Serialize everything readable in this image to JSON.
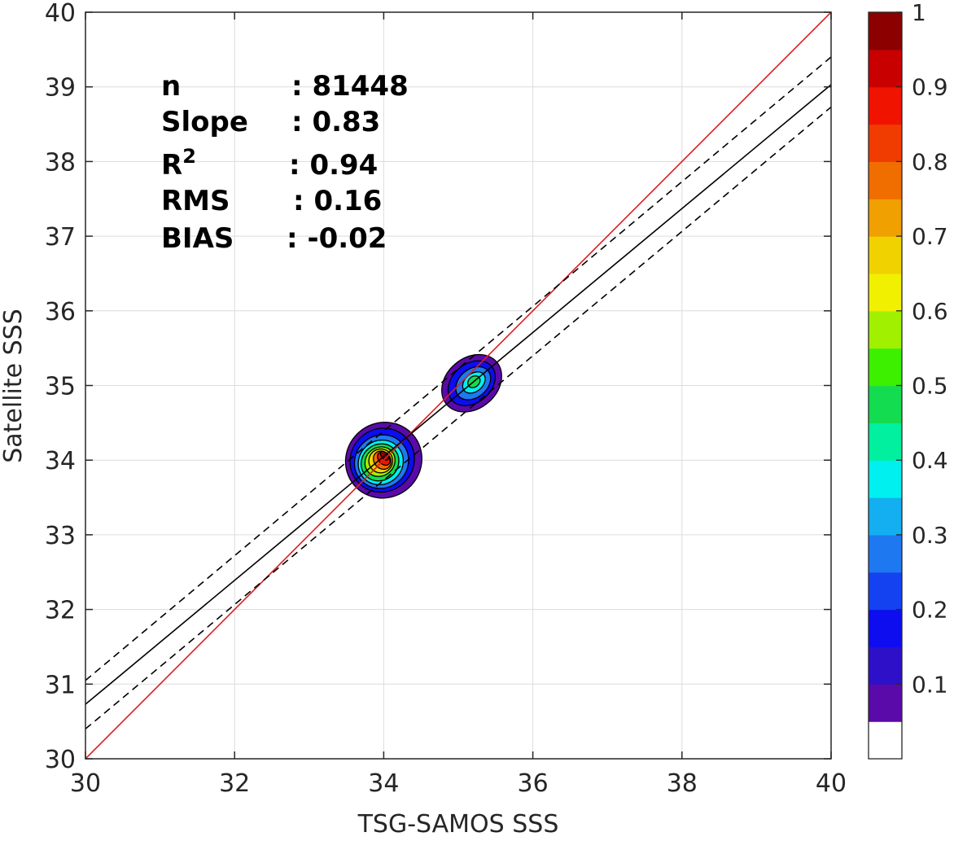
{
  "chart_data": {
    "type": "heatmap",
    "subtype": "density contour scatter",
    "xlabel": "TSG-SAMOS SSS",
    "ylabel": "Satellite SSS",
    "xlim": [
      30,
      40
    ],
    "ylim": [
      30,
      40
    ],
    "x_ticks": [
      "30",
      "32",
      "34",
      "36",
      "38",
      "40"
    ],
    "y_ticks": [
      "30",
      "31",
      "32",
      "33",
      "34",
      "35",
      "36",
      "37",
      "38",
      "39",
      "40"
    ],
    "grid": true,
    "stats": [
      {
        "label": "n",
        "sep": ":",
        "value": "81448"
      },
      {
        "label": "Slope",
        "sep": ":",
        "value": "0.83"
      },
      {
        "label": "R",
        "sup": "2",
        "sep": ":",
        "value": "0.94"
      },
      {
        "label": "RMS",
        "sep": ":",
        "value": "0.16"
      },
      {
        "label": "BIAS",
        "sep": ":",
        "value": "-0.02"
      }
    ],
    "lines": [
      {
        "role": "one-to-one",
        "color": "#e41a1c",
        "style": "solid",
        "points": [
          [
            30,
            30
          ],
          [
            40,
            40
          ]
        ]
      },
      {
        "role": "fit",
        "color": "#000000",
        "style": "solid",
        "points": [
          [
            30,
            30.73
          ],
          [
            40,
            39.03
          ]
        ]
      },
      {
        "role": "fit-upper",
        "color": "#000000",
        "style": "dashed",
        "points": [
          [
            30,
            31.05
          ],
          [
            40,
            39.4
          ]
        ]
      },
      {
        "role": "fit-lower",
        "color": "#000000",
        "style": "dashed",
        "points": [
          [
            30,
            30.4
          ],
          [
            40,
            38.73
          ]
        ]
      }
    ],
    "density_clusters": [
      {
        "center": [
          34.0,
          34.0
        ],
        "levels": [
          {
            "value": 0.05,
            "rx": 0.52,
            "ry": 0.5,
            "dx": 0.0,
            "dy": 0.0
          },
          {
            "value": 0.15,
            "rx": 0.44,
            "ry": 0.42,
            "dx": -0.02,
            "dy": 0.0
          },
          {
            "value": 0.25,
            "rx": 0.37,
            "ry": 0.35,
            "dx": -0.03,
            "dy": -0.02
          },
          {
            "value": 0.35,
            "rx": 0.31,
            "ry": 0.29,
            "dx": -0.04,
            "dy": -0.03
          },
          {
            "value": 0.45,
            "rx": 0.26,
            "ry": 0.24,
            "dx": -0.05,
            "dy": -0.03
          },
          {
            "value": 0.55,
            "rx": 0.21,
            "ry": 0.19,
            "dx": -0.05,
            "dy": -0.02
          },
          {
            "value": 0.65,
            "rx": 0.16,
            "ry": 0.16,
            "dx": -0.04,
            "dy": -0.01
          },
          {
            "value": 0.75,
            "rx": 0.11,
            "ry": 0.13,
            "dx": -0.02,
            "dy": 0.0
          },
          {
            "value": 0.85,
            "rx": 0.07,
            "ry": 0.1,
            "dx": 0.0,
            "dy": 0.02
          },
          {
            "value": 0.95,
            "rx": 0.04,
            "ry": 0.07,
            "dx": 0.01,
            "dy": 0.06
          }
        ]
      },
      {
        "center": [
          35.18,
          35.03
        ],
        "levels": [
          {
            "value": 0.05,
            "rx": 0.44,
            "ry": 0.34,
            "dx": 0.0,
            "dy": 0.0
          },
          {
            "value": 0.15,
            "rx": 0.35,
            "ry": 0.26,
            "dx": 0.0,
            "dy": 0.0
          },
          {
            "value": 0.25,
            "rx": 0.26,
            "ry": 0.19,
            "dx": 0.02,
            "dy": 0.0
          },
          {
            "value": 0.35,
            "rx": 0.17,
            "ry": 0.12,
            "dx": 0.03,
            "dy": 0.01
          },
          {
            "value": 0.45,
            "rx": 0.09,
            "ry": 0.07,
            "dx": 0.03,
            "dy": 0.02
          }
        ]
      }
    ],
    "colorbar": {
      "min": 0,
      "max": 1,
      "ticks": [
        "0.1",
        "0.2",
        "0.3",
        "0.4",
        "0.5",
        "0.6",
        "0.7",
        "0.8",
        "0.9",
        "1"
      ],
      "colors": [
        "#ffffff",
        "#5a0aa8",
        "#2e10c8",
        "#0d0df0",
        "#1442f0",
        "#1e78f0",
        "#14aff0",
        "#00f0f0",
        "#00f0a0",
        "#14dc50",
        "#3cf000",
        "#a0f000",
        "#f0f000",
        "#f0d200",
        "#f0a000",
        "#f06e00",
        "#f03c00",
        "#f01400",
        "#c80000",
        "#8c0000"
      ]
    }
  }
}
